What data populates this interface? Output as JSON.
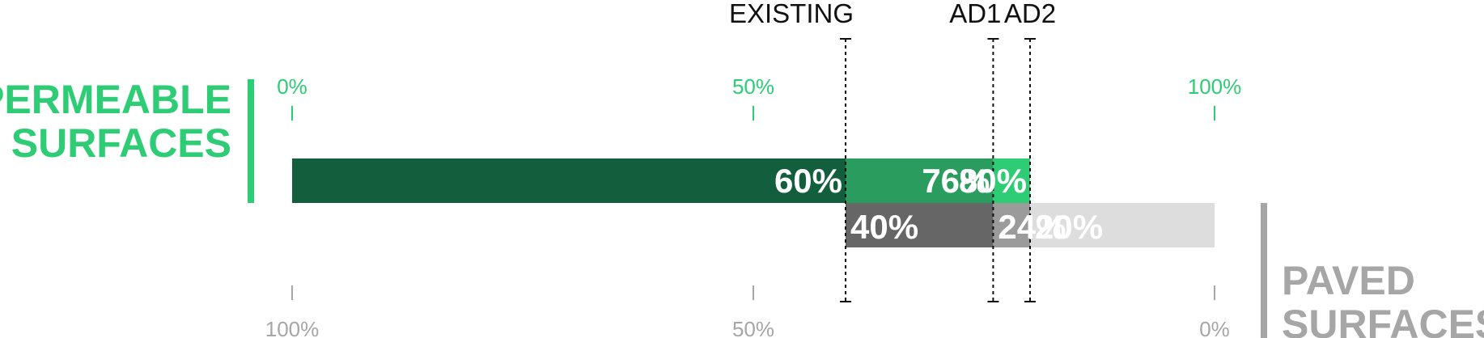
{
  "permeable_label": [
    "PERMEABLE",
    "SURFACES"
  ],
  "paved_label": [
    "PAVED",
    "SURFACES"
  ],
  "colors": {
    "permeable_existing": "#135e3c",
    "permeable_ad1": "#2a9c5e",
    "permeable_ad2": "#2dcc75",
    "paved_existing": "#666666",
    "paved_ad1": "#9b9b9b",
    "paved_ad2": "#dddddd",
    "permeable_text": "#2dcc75",
    "paved_text": "#a6a6a6",
    "scenario_line": "#111111"
  },
  "chart_data": {
    "type": "bar",
    "orientation": "horizontal",
    "scenarios": [
      "EXISTING",
      "AD1",
      "AD2"
    ],
    "top_axis": {
      "ticks": [
        0,
        50,
        100
      ],
      "tick_labels": [
        "0%",
        "50%",
        "100%"
      ],
      "range": [
        0,
        100
      ]
    },
    "bottom_axis": {
      "ticks": [
        100,
        50,
        0
      ],
      "tick_labels": [
        "100%",
        "50%",
        "0%"
      ],
      "range": [
        100,
        0
      ]
    },
    "series": [
      {
        "name": "PERMEABLE SURFACES",
        "values": [
          60,
          76,
          80
        ],
        "labels": [
          "60%",
          "76%",
          "80%"
        ]
      },
      {
        "name": "PAVED SURFACES",
        "values": [
          40,
          24,
          20
        ],
        "labels": [
          "40%",
          "24%",
          "20%"
        ]
      }
    ],
    "grid": false
  }
}
